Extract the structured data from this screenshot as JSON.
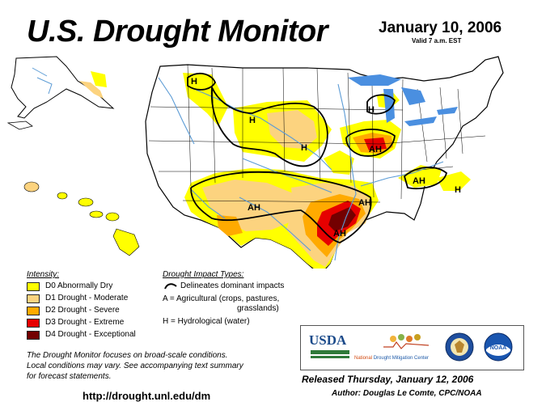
{
  "header": {
    "title": "U.S. Drought Monitor",
    "date": "January 10, 2006",
    "valid": "Valid 7 a.m. EST"
  },
  "legend": {
    "intensity_title": "Intensity:",
    "items": [
      {
        "label": "D0 Abnormally Dry",
        "color": "#ffff00"
      },
      {
        "label": "D1 Drought - Moderate",
        "color": "#fcd37f"
      },
      {
        "label": "D2 Drought - Severe",
        "color": "#ffaa00"
      },
      {
        "label": "D3 Drought - Extreme",
        "color": "#e60000"
      },
      {
        "label": "D4 Drought - Exceptional",
        "color": "#730000"
      }
    ],
    "impact_title": "Drought Impact Types:",
    "impact_lines": [
      "Delineates dominant impacts",
      "A = Agricultural (crops, pastures,",
      "grasslands)",
      "H = Hydrological (water)"
    ]
  },
  "map": {
    "labels": [
      "H",
      "H",
      "H",
      "H",
      "AH",
      "AH",
      "AH",
      "AH",
      "AH",
      "H"
    ],
    "colors": {
      "water": "#5b9bd5",
      "lakes": "#4a8fe0",
      "land": "#ffffff",
      "borders": "#000000"
    }
  },
  "footer": {
    "note_lines": [
      "The Drought Monitor focuses on broad-scale conditions.",
      "Local conditions may vary.  See accompanying text summary",
      "for forecast statements."
    ],
    "url": "http://drought.unl.edu/dm",
    "released": "Released Thursday, January 12, 2006",
    "author": "Author:  Douglas Le Comte, CPC/NOAA"
  },
  "logos": {
    "usda": "USDA",
    "ndmc_prefix": "National ",
    "ndmc_name": "Drought Mitigation Center",
    "commerce_icon": "commerce-seal-icon",
    "noaa": "NOAA"
  }
}
